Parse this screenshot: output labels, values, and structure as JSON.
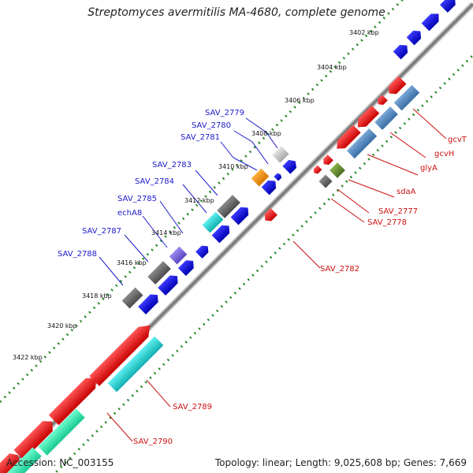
{
  "title": "Streptomyces avermitilis MA-4680, complete genome",
  "footer": {
    "accession": "Accession: NC_003155",
    "summary": "Topology: linear; Length: 9,025,608 bp; Genes: 7,669"
  },
  "colors": {
    "backbone": "#8a8a8a",
    "tick": "#2e8b2e",
    "forward_label": "#1a1acc",
    "reverse_label": "#cc1111"
  },
  "ticks": [
    "3402 kbp",
    "3404 kbp",
    "3406 kbp",
    "3408 kbp",
    "3410 kbp",
    "3412 kbp",
    "3414 kbp",
    "3416 kbp",
    "3418 kbp",
    "3420 kbp",
    "3422 kbp"
  ],
  "labels": {
    "forward": [
      "SAV_2779",
      "SAV_2780",
      "SAV_2781",
      "SAV_2783",
      "SAV_2784",
      "SAV_2785",
      "echA8",
      "SAV_2787",
      "SAV_2788"
    ],
    "reverse": [
      "gcvT",
      "gcvH",
      "glyA",
      "sdaA",
      "SAV_2777",
      "SAV_2778",
      "SAV_2782",
      "SAV_2789",
      "SAV_2790"
    ]
  }
}
